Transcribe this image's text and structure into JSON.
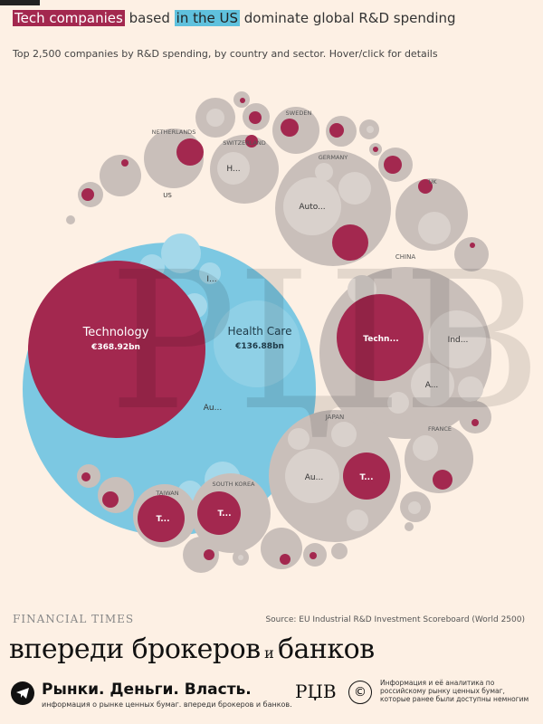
{
  "header": {
    "title_part1": "Tech companies",
    "title_part2": " based ",
    "title_part3": "in the US",
    "title_part4": " dominate global R&D spending",
    "subtitle": "Top 2,500 companies by R&D spending, by country and sector. Hover/click for details"
  },
  "colors": {
    "background": "#fdf0e4",
    "tech": "#a3284f",
    "us": "#7cc8e2",
    "country": "#c9bfba",
    "bubble": "#d9d1cc"
  },
  "chart_data": {
    "type": "bubble",
    "groups": [
      {
        "name": "US",
        "highlight": "blue",
        "sectors": [
          {
            "label": "Technology",
            "value": "€368.92bn",
            "tech": true
          },
          {
            "label": "Health Care",
            "value": "€136.88bn",
            "tech": false
          },
          {
            "label": "I...",
            "tech": false
          },
          {
            "label": "Au...",
            "tech": false
          }
        ]
      },
      {
        "name": "CHINA",
        "sectors": [
          {
            "label": "Techn...",
            "tech": true
          },
          {
            "label": "Ind...",
            "tech": false
          },
          {
            "label": "A...",
            "tech": false
          }
        ]
      },
      {
        "name": "JAPAN",
        "sectors": [
          {
            "label": "Au...",
            "tech": false
          },
          {
            "label": "T...",
            "tech": true
          }
        ]
      },
      {
        "name": "GERMANY",
        "sectors": [
          {
            "label": "Auto...",
            "tech": false
          }
        ]
      },
      {
        "name": "SWITZERLAND",
        "sectors": [
          {
            "label": "H...",
            "tech": false
          }
        ]
      },
      {
        "name": "SOUTH KOREA",
        "sectors": [
          {
            "label": "T...",
            "tech": true
          }
        ]
      },
      {
        "name": "TAIWAN",
        "sectors": [
          {
            "label": "T...",
            "tech": true
          }
        ]
      },
      {
        "name": "NETHERLANDS",
        "sectors": []
      },
      {
        "name": "SWEDEN",
        "sectors": []
      },
      {
        "name": "UK",
        "sectors": []
      },
      {
        "name": "FRANCE",
        "sectors": []
      }
    ]
  },
  "footer": {
    "ft_logo": "FINANCIAL TIMES",
    "source": "Source: EU Industrial R&D Investment Scoreboard (World 2500)",
    "slogan_part1": "впереди брокеров",
    "slogan_and": " и ",
    "slogan_part2": "банков",
    "brand": "Рынки. Деньги. Власть.",
    "brand_sub": "информация о рынке ценных бумаг. впереди брокеров и банков.",
    "rzb": "РЏВ",
    "copyright": "©",
    "disclaimer": "Информация и её аналитика по российскому рынку ценных бумаг, которые ранее были доступны немногим"
  }
}
